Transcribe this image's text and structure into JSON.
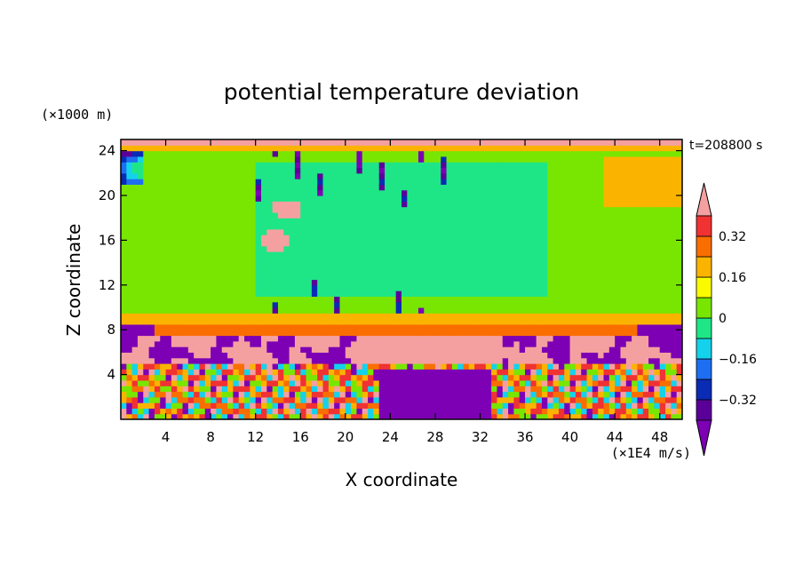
{
  "chart_data": {
    "type": "heatmap",
    "title": "potential temperature deviation",
    "xlabel": "X coordinate",
    "ylabel": "Z coordinate",
    "x_unit": "(×1E4 m/s)",
    "y_unit": "(×1000 m)",
    "time_label": "t=208800 s",
    "xlim": [
      0,
      50
    ],
    "ylim": [
      0,
      25
    ],
    "x_ticks": [
      4,
      8,
      12,
      16,
      20,
      24,
      28,
      32,
      36,
      40,
      44,
      48
    ],
    "x_tick_labels": [
      "4",
      "8",
      "12",
      "16",
      "20",
      "24",
      "28",
      "32",
      "36",
      "40",
      "44",
      "48"
    ],
    "y_ticks": [
      4,
      8,
      12,
      16,
      20,
      24
    ],
    "y_tick_labels": [
      "4",
      "8",
      "12",
      "16",
      "20",
      "24"
    ],
    "colorbar": {
      "levels": [
        -0.4,
        -0.32,
        -0.24,
        -0.16,
        -0.08,
        0,
        0.08,
        0.16,
        0.24,
        0.32,
        0.4
      ],
      "colors": [
        "#5a0099",
        "#0a2bb4",
        "#1e6ef2",
        "#14d2eb",
        "#1ee687",
        "#78e600",
        "#fafa00",
        "#fab400",
        "#fa6e00",
        "#f03232"
      ],
      "under_color": "#7d00b4",
      "over_color": "#f5a0a0",
      "tick_values": [
        0.32,
        0.16,
        0,
        -0.16,
        -0.32
      ],
      "tick_labels": [
        "0.32",
        "0.16",
        "0",
        "−0.16",
        "−0.32"
      ]
    },
    "layers": [
      {
        "z_range": [
          0,
          5
        ],
        "description_value": "mixed",
        "dominant_values": [
          0.36,
          -0.44,
          0.2
        ]
      },
      {
        "z_range": [
          5,
          8
        ],
        "dominant_values": [
          -0.44,
          0.44
        ]
      },
      {
        "z_range": [
          8,
          9.5
        ],
        "dominant_values": [
          0.28,
          0.2
        ]
      },
      {
        "z_range": [
          9.5,
          24
        ],
        "dominant_values": [
          0.04,
          -0.04
        ]
      },
      {
        "z_range": [
          24,
          25
        ],
        "dominant_values": [
          0.44,
          0.2
        ]
      }
    ]
  }
}
